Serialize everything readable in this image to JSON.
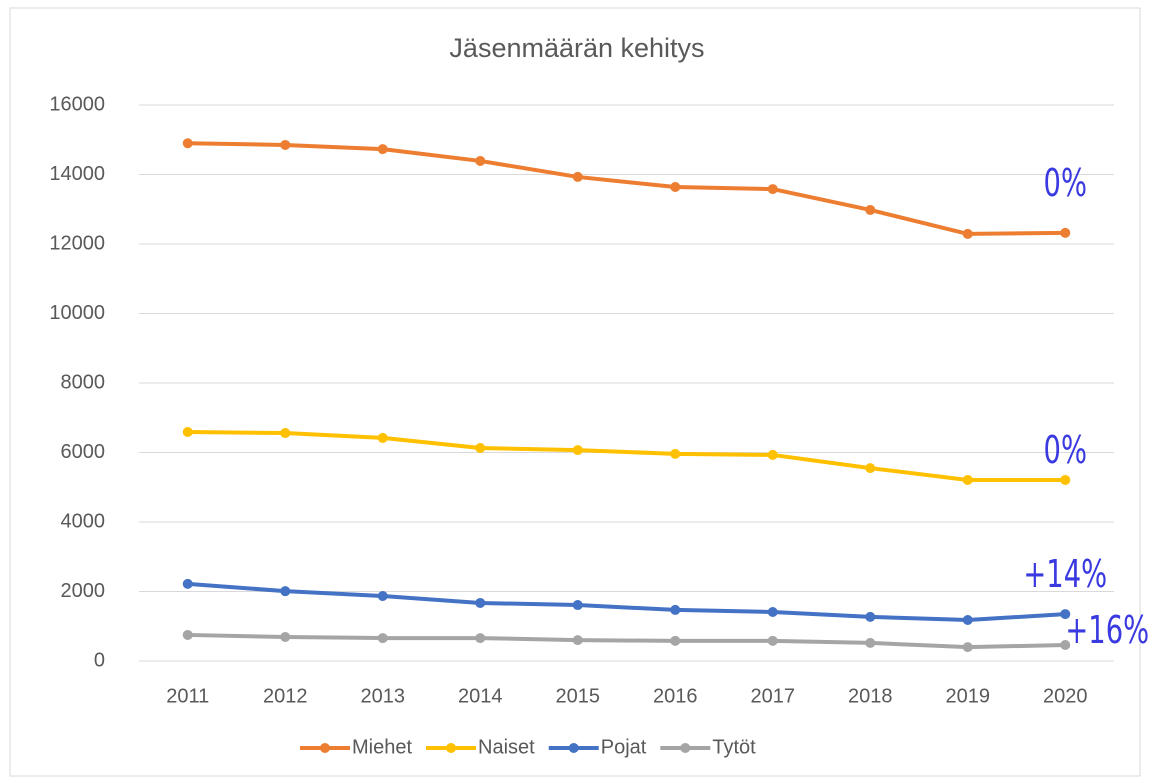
{
  "chart_data": {
    "type": "line",
    "title": "Jäsenmäärän kehitys",
    "categories": [
      "2011",
      "2012",
      "2013",
      "2014",
      "2015",
      "2016",
      "2017",
      "2018",
      "2019",
      "2020"
    ],
    "series": [
      {
        "name": "Miehet",
        "color": "#ed7d31",
        "values": [
          14900,
          14850,
          14730,
          14390,
          13930,
          13640,
          13580,
          12980,
          12290,
          12320
        ],
        "annotation": "0%"
      },
      {
        "name": "Naiset",
        "color": "#ffc000",
        "values": [
          6590,
          6560,
          6420,
          6130,
          6070,
          5960,
          5930,
          5550,
          5210,
          5210
        ],
        "annotation": "0%"
      },
      {
        "name": "Pojat",
        "color": "#4472c4",
        "values": [
          2220,
          2010,
          1870,
          1670,
          1610,
          1470,
          1410,
          1270,
          1180,
          1350
        ],
        "annotation": "+14%"
      },
      {
        "name": "Tytöt",
        "color": "#a5a5a5",
        "values": [
          750,
          690,
          660,
          660,
          600,
          580,
          580,
          520,
          400,
          460
        ],
        "annotation": "+16%"
      }
    ],
    "ylim": [
      0,
      16000
    ],
    "yticks": [
      0,
      2000,
      4000,
      6000,
      8000,
      10000,
      12000,
      14000,
      16000
    ],
    "grid": true,
    "legend": "bottom"
  }
}
